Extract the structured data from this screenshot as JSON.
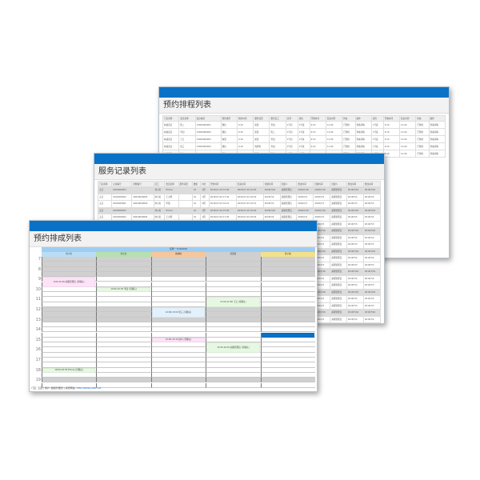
{
  "schedule_window": {
    "title": "预约排程列表",
    "headers": [
      "门店名称",
      "会员名称",
      "会员电话",
      "预约类型",
      "预约时间",
      "服务项目",
      "服务员工",
      "房间",
      "床位",
      "开始时间",
      "结束时间",
      "状态",
      "操作",
      "床位",
      "开始时间",
      "结束时间",
      "状态",
      "操作"
    ],
    "rows": [
      [
        "林语花店",
        "陈二",
        "13400000001",
        "微信",
        "9:10",
        "染烫",
        "李四",
        "1号房",
        "1号床",
        "9:10",
        "11:00",
        "已预约",
        "查看详情",
        "1号床",
        "9:10",
        "11:00",
        "已预约",
        "查看详情"
      ],
      [
        "林语花店",
        "李四",
        "13400000002",
        "微信",
        "9:10",
        "染烫",
        "陈二",
        "1号房",
        "1号床",
        "9:10",
        "11:00",
        "已预约",
        "查看详情",
        "1号床",
        "9:10",
        "11:00",
        "已预约",
        "查看详情"
      ],
      [
        "林语花店",
        "王五",
        "13400000003",
        "电话",
        "9:10",
        "染烫",
        "李四",
        "1号房",
        "1号床",
        "9:10",
        "11:00",
        "已预约",
        "查看详情",
        "1号床",
        "9:10",
        "11:00",
        "已预约",
        "查看详情"
      ],
      [
        "林语花店",
        "张三",
        "13400000004",
        "微信",
        "9:10",
        "洗剪吹",
        "李四",
        "2号房",
        "1号床",
        "9:10",
        "11:00",
        "已预约",
        "查看详情",
        "1号床",
        "9:10",
        "11:00",
        "已预约",
        "查看详情"
      ],
      [
        "林语花店",
        "赵六",
        "13400000005",
        "微信",
        "9:10",
        "染烫",
        "李四",
        "2号房",
        "1号床",
        "9:10",
        "11:00",
        "已预约",
        "查看详情",
        "1号床",
        "9:10",
        "11:00",
        "已预约",
        "查看详情"
      ]
    ]
  },
  "record_window": {
    "title": "服务记录列表",
    "headers": [
      "门店名称",
      "记录编号",
      "消费编号",
      "员工",
      "会员名称",
      "服务项目",
      "数量",
      "时长",
      "开始时间",
      "结束时间",
      "创建时间",
      "创建人",
      "修改时间",
      "创建时间",
      "创建人",
      "修改时间",
      "修改时间"
    ],
    "rows": [
      [
        "五店",
        "0010000003",
        "",
        "刘小名",
        "Emma",
        "",
        "01",
        "1周",
        "2018-07-16 15:00",
        "2018-07-16 16:00",
        "2018/7/16",
        "超级管理员",
        "2018/7/16",
        "2018/7/16",
        "超级管理员",
        "2018/7/16",
        "2018/7/16"
      ],
      [
        "五店",
        "0010000002",
        "S0010000004",
        "刘小名",
        "王小明",
        "",
        "01",
        "1周",
        "2018-07-04 17:30",
        "2018-07-04 18:30",
        "2018/7/4",
        "超级管理员",
        "2018/7/4",
        "2018/7/4",
        "超级管理员",
        "2018/7/4",
        "2018/7/4"
      ],
      [
        "五店",
        "0010000001",
        "S0010000005",
        "刘小名",
        "李丽",
        "",
        "01",
        "2周",
        "2018-07-03 16:21",
        "2018-07-03 16:51",
        "2018/7/3",
        "超级管理员",
        "2018/7/3",
        "2018/7/3",
        "超级管理员",
        "2018/7/3",
        "2018/7/3"
      ],
      [
        "五店",
        "0010000003",
        "",
        "刘小名",
        "Emma",
        "",
        "01",
        "1周",
        "2018-07-16 15:00",
        "2018-07-16 16:00",
        "2018/7/16",
        "超级管理员",
        "2018/7/16",
        "2018/7/16",
        "超级管理员",
        "2018/7/16",
        "2018/7/16"
      ],
      [
        "五店",
        "0010000002",
        "S0010000004",
        "刘小名",
        "王小明",
        "",
        "01",
        "1周",
        "2018-07-04 17:30",
        "2018-07-04 18:30",
        "2018/7/4",
        "超级管理员",
        "2018/7/4",
        "2018/7/4",
        "超级管理员",
        "2018/7/4",
        "2018/7/4"
      ],
      [
        "五店",
        "0010000001",
        "S0010000005",
        "刘小名",
        "李丽",
        "",
        "01",
        "2周",
        "2018-07-03 16:21",
        "2018-07-03 16:51",
        "2018/7/3",
        "超级管理员",
        "2018/7/3",
        "2018/7/3",
        "超级管理员",
        "2018/7/3",
        "2018/7/3"
      ],
      [
        "五店",
        "0010000003",
        "",
        "刘小名",
        "Emma",
        "",
        "01",
        "1周",
        "2018-07-16 15:00",
        "2018-07-16 16:00",
        "2018/7/16",
        "超级管理员",
        "2018/7/16",
        "2018/7/16",
        "超级管理员",
        "2018/7/16",
        "2018/7/16"
      ],
      [
        "五店",
        "0010000002",
        "S0010000004",
        "刘小名",
        "王小明",
        "",
        "01",
        "1周",
        "2018-07-04 17:30",
        "2018-07-04 18:30",
        "2018/7/4",
        "超级管理员",
        "2018/7/4",
        "2018/7/4",
        "超级管理员",
        "2018/7/4",
        "2018/7/4"
      ],
      [
        "五店",
        "0010000001",
        "S0010000005",
        "刘小名",
        "李丽",
        "",
        "01",
        "2周",
        "2018-07-03 16:21",
        "2018-07-03 16:51",
        "2018/7/3",
        "超级管理员",
        "2018/7/3",
        "2018/7/3",
        "超级管理员",
        "2018/7/3",
        "2018/7/3"
      ],
      [
        "五店",
        "0010000003",
        "",
        "刘小名",
        "Emma",
        "",
        "01",
        "1周",
        "2018-07-16 15:00",
        "2018-07-16 16:00",
        "2018/7/16",
        "超级管理员",
        "2018/7/16",
        "2018/7/16",
        "超级管理员",
        "2018/7/16",
        "2018/7/16"
      ],
      [
        "五店",
        "0010000002",
        "S0010000004",
        "刘小名",
        "王小明",
        "",
        "01",
        "1周",
        "2018-07-04 17:30",
        "2018-07-04 18:30",
        "2018/7/4",
        "超级管理员",
        "2018/7/4",
        "2018/7/4",
        "超级管理员",
        "2018/7/4",
        "2018/7/4"
      ],
      [
        "五店",
        "0010000001",
        "S0010000005",
        "刘小名",
        "李丽",
        "",
        "01",
        "2周",
        "2018-07-03 16:21",
        "2018-07-03 16:51",
        "2018/7/3",
        "超级管理员",
        "2018/7/3",
        "2018/7/3",
        "超级管理员",
        "2018/7/3",
        "2018/7/3"
      ],
      [
        "五店",
        "0010000003",
        "",
        "刘小名",
        "Emma",
        "",
        "01",
        "1周",
        "2018-07-16 15:00",
        "2018-07-16 16:00",
        "2018/7/16",
        "超级管理员",
        "2018/7/16",
        "2018/7/16",
        "超级管理员",
        "2018/7/16",
        "2018/7/16"
      ],
      [
        "五店",
        "0010000002",
        "S0010000004",
        "刘小名",
        "王小明",
        "",
        "01",
        "1周",
        "2018-07-04 17:30",
        "2018-07-04 18:30",
        "2018/7/4",
        "超级管理员",
        "2018/7/4",
        "2018/7/4",
        "超级管理员",
        "2018/7/4",
        "2018/7/4"
      ],
      [
        "五店",
        "0010000001",
        "S0010000005",
        "刘小名",
        "李丽",
        "",
        "01",
        "2周",
        "2018-07-03 16:21",
        "2018-07-03 16:51",
        "2018/7/3",
        "超级管理员",
        "2018/7/3",
        "2018/7/3",
        "超级管理员",
        "2018/7/3",
        "2018/7/3"
      ],
      [
        "五店",
        "0010000003",
        "",
        "刘小名",
        "Emma",
        "",
        "01",
        "1周",
        "2018-07-16 15:00",
        "2018-07-16 16:00",
        "2018/7/16",
        "超级管理员",
        "2018/7/16",
        "2018/7/16",
        "超级管理员",
        "2018/7/16",
        "2018/7/16"
      ],
      [
        "五店",
        "0010000002",
        "S0010000004",
        "刘小名",
        "王小明",
        "",
        "01",
        "1周",
        "2018-07-04 17:30",
        "2018-07-04 18:30",
        "2018/7/4",
        "超级管理员",
        "2018/7/4",
        "2018/7/4",
        "超级管理员",
        "2018/7/4",
        "2018/7/4"
      ],
      [
        "五店",
        "0010000001",
        "S0010000005",
        "刘小名",
        "李丽",
        "",
        "01",
        "2周",
        "2018-07-03 16:21",
        "2018-07-03 16:51",
        "2018/7/3",
        "超级管理员",
        "2018/7/3",
        "2018/7/3",
        "超级管理员",
        "2018/7/3",
        "2018/7/3"
      ],
      [
        "五店",
        "0010000003",
        "",
        "刘小名",
        "Emma",
        "",
        "01",
        "1周",
        "2018-07-16 15:00",
        "2018-07-16 16:00",
        "2018/7/16",
        "超级管理员",
        "2018/7/16",
        "2018/7/16",
        "超级管理员",
        "2018/7/16",
        "2018/7/16"
      ],
      [
        "五店",
        "0010000002",
        "S0010000004",
        "刘小名",
        "王小明",
        "",
        "01",
        "1周",
        "2018-07-04 17:30",
        "2018-07-04 18:30",
        "2018/7/4",
        "超级管理员",
        "2018/7/4",
        "2018/7/4",
        "超级管理员",
        "2018/7/4",
        "2018/7/4"
      ]
    ],
    "selected_rows": [
      0,
      3,
      6,
      9,
      12,
      15,
      18
    ]
  },
  "calendar_window": {
    "title": "预约排成列表",
    "date_header": "星期一 7/16/2018",
    "hours": [
      7,
      8,
      9,
      10,
      11,
      12,
      13,
      14,
      15,
      16,
      17,
      18,
      19
    ],
    "off_ranges": [
      [
        7,
        9
      ],
      [
        12,
        13.5
      ],
      [
        19,
        19.5
      ]
    ],
    "columns": [
      {
        "name": "刘小名",
        "color": "#b9ddf5"
      },
      {
        "name": "刘小名",
        "color": "#b6e0b0"
      },
      {
        "name": "柳柳柳",
        "color": "#f7c69a"
      },
      {
        "name": "沈慧慧",
        "color": "#cfcfcf"
      },
      {
        "name": "黄小敏",
        "color": "#f2e08a"
      }
    ],
    "events": [
      {
        "col": 0,
        "start": 9,
        "end": 10,
        "text": "9:00-10:00 超级管理员 (待确认)",
        "color": "#fde3f7"
      },
      {
        "col": 1,
        "start": 10,
        "end": 10.5,
        "text": "10:00-10:30 李四 (待确认)",
        "color": "#e6f8e2"
      },
      {
        "col": 3,
        "start": 11,
        "end": 12,
        "text": "11:00-12:00 王五 (待确认)",
        "color": "#e6f8e2"
      },
      {
        "col": 2,
        "start": 12,
        "end": 13,
        "text": "12:00-13:00 张三 (待确认)",
        "color": "#e3f1fc"
      },
      {
        "col": 2,
        "start": 15,
        "end": 15.5,
        "text": "15:00-15:30 赵六 (待确认)",
        "color": "#fde3f7"
      },
      {
        "col": 3,
        "start": 15.5,
        "end": 16.5,
        "text": "15:30-16:30 超级管理员 (待确认)",
        "color": "#e6f8e2"
      },
      {
        "col": 0,
        "start": 18,
        "end": 18.5,
        "text": "18:00-18:30 Emma (待确认)",
        "color": "#e6f8e2"
      },
      {
        "col": 4,
        "start": 14.5,
        "end": 15,
        "text": "",
        "color": "#0a72c6"
      }
    ],
    "footer": {
      "store": "门店: 五店",
      "user": "用户: 超级管理员",
      "source": "来源网站:",
      "link": "http://www.yuler.net"
    }
  }
}
